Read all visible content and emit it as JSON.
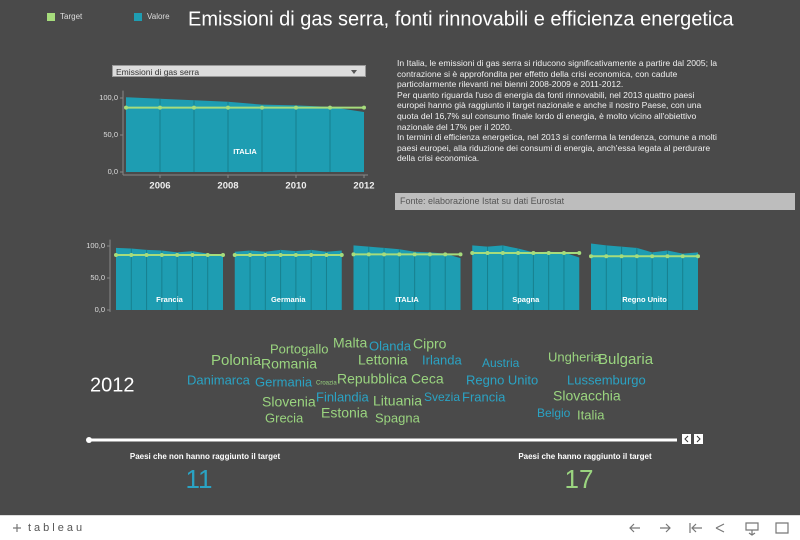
{
  "header": {
    "title": "Emissioni di gas serra, fonti rinnovabili e efficienza energetica"
  },
  "dropdown": {
    "selected": "Emissioni di gas serra"
  },
  "description": {
    "paragraphs": [
      "In Italia, le emissioni di gas serra si riducono significativamente a partire dal 2005; la contrazione si è approfondita per effetto della crisi economica, con cadute particolarmente rilevanti nei bienni 2008-2009 e 2011-2012.",
      "Per quanto riguarda l'uso di energia da fonti rinnovabili, nel 2013 quattro paesi europei hanno già raggiunto il target nazionale e anche il nostro Paese, con una quota del 16,7% sul consumo finale lordo di energia, è molto vicino all'obiettivo nazionale del 17% per il 2020.",
      "In termini di efficienza energetica, nel 2013 si conferma la tendenza, comune a molti paesi europei, alla riduzione dei consumi di energia, anch'essa legata al perdurare della crisi economica."
    ]
  },
  "source": "Fonte: elaborazione Istat su dati Eurostat",
  "chart_data": [
    {
      "type": "area",
      "title": "ITALIA",
      "x": [
        2005,
        2006,
        2007,
        2008,
        2009,
        2010,
        2011,
        2012
      ],
      "xlim": [
        2005,
        2012
      ],
      "xticks": [
        2006,
        2008,
        2010,
        2012
      ],
      "ylim": [
        0,
        110
      ],
      "yticks": [
        {
          "value": 0,
          "label": "0,0"
        },
        {
          "value": 50,
          "label": "50,0"
        },
        {
          "value": 100,
          "label": "100,0"
        }
      ],
      "series": [
        {
          "name": "Valore",
          "color": "#1e9db2",
          "values": [
            101,
            99,
            97,
            95,
            91,
            90,
            88,
            81
          ]
        },
        {
          "name": "Target",
          "color": "#a6dc7c",
          "values": [
            87,
            87,
            87,
            87,
            87,
            87,
            87,
            87
          ]
        }
      ]
    },
    {
      "type": "area-panels",
      "x": [
        2005,
        2006,
        2007,
        2008,
        2009,
        2010,
        2011,
        2012
      ],
      "xlim": [
        2005,
        2012
      ],
      "ylim": [
        0,
        110
      ],
      "yticks": [
        {
          "value": 0,
          "label": "0,0"
        },
        {
          "value": 50,
          "label": "50,0"
        },
        {
          "value": 100,
          "label": "100,0"
        }
      ],
      "panels": [
        {
          "title": "Francia",
          "values": [
            97,
            96,
            94,
            93,
            90,
            92,
            88,
            86
          ],
          "target": [
            86,
            86,
            86,
            86,
            86,
            86,
            86,
            86
          ]
        },
        {
          "title": "Germania",
          "values": [
            91,
            93,
            91,
            94,
            92,
            94,
            91,
            93
          ],
          "target": [
            86,
            86,
            86,
            86,
            86,
            86,
            86,
            86
          ]
        },
        {
          "title": "ITALIA",
          "values": [
            101,
            99,
            97,
            95,
            91,
            90,
            88,
            81
          ],
          "target": [
            87,
            87,
            87,
            87,
            87,
            87,
            87,
            87
          ]
        },
        {
          "title": "Spagna",
          "values": [
            101,
            99,
            101,
            96,
            90,
            91,
            90,
            82
          ],
          "target": [
            89,
            89,
            89,
            89,
            89,
            89,
            89,
            89
          ]
        },
        {
          "title": "Regno Unito",
          "values": [
            104,
            101,
            99,
            97,
            90,
            93,
            88,
            90
          ],
          "target": [
            84,
            84,
            84,
            84,
            84,
            84,
            84,
            84
          ]
        }
      ]
    }
  ],
  "word_cloud": {
    "year": "2012",
    "groups": [
      {
        "label": "Paesi che non hanno raggiunto il target",
        "count": 11,
        "color": "#2aa3c4",
        "words": [
          "Olanda",
          "Irlanda",
          "Austria",
          "Danimarca",
          "Germania",
          "Regno Unito",
          "Lussemburgo",
          "Finlandia",
          "Svezia",
          "Francia",
          "Belgio"
        ]
      },
      {
        "label": "Paesi che hanno raggiunto il target",
        "count": 17,
        "color": "#9ad47f",
        "words": [
          "Portogallo",
          "Malta",
          "Cipro",
          "Polonia",
          "Romania",
          "Lettonia",
          "Ungheria",
          "Bulgaria",
          "Repubblica Ceca",
          "Croazia",
          "Slovenia",
          "Lituania",
          "Slovacchia",
          "Grecia",
          "Estonia",
          "Spagna",
          "Italia"
        ]
      }
    ]
  },
  "footer": {
    "logo": "tableau"
  }
}
